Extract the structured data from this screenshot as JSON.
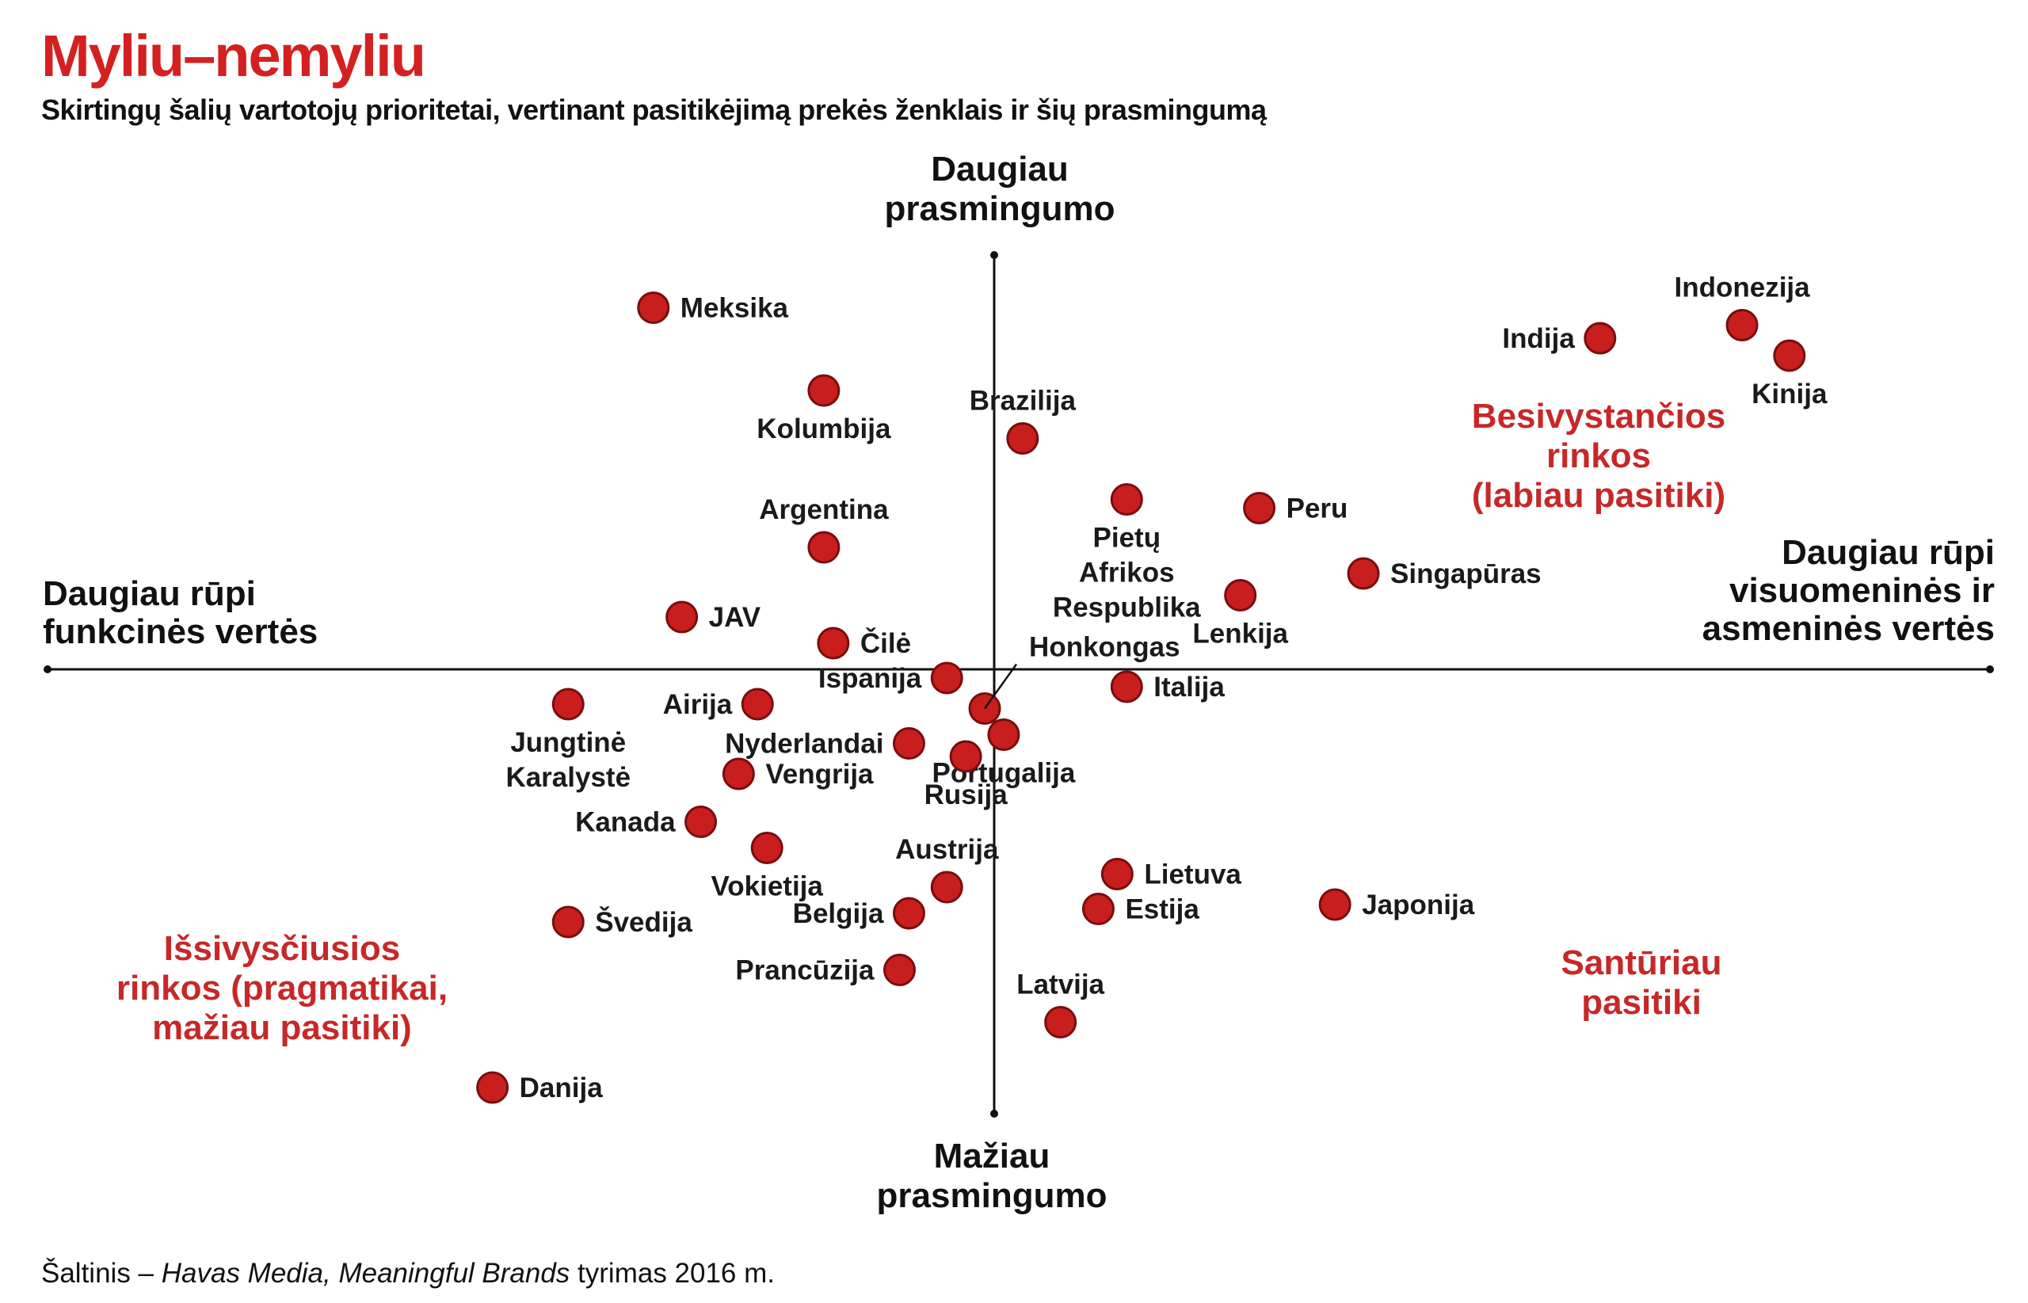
{
  "title": "Myliu–nemyliu",
  "subtitle": "Skirtingų šalių vartotojų prioritetai, vertinant pasitikėjimą prekės ženklais ir šių prasmingumą",
  "colors": {
    "title": "#d42020",
    "dot": "#c81e1e",
    "dot_stroke": "#7a0d0d",
    "quadrant_text": "#c62828",
    "axis": "#111111"
  },
  "source": {
    "prefix": "Šaltinis – ",
    "italic": "Havas Media, Meaningful Brands",
    "suffix": " tyrimas 2016 m."
  },
  "chart_data": {
    "type": "scatter",
    "title": "Myliu–nemyliu",
    "subtitle": "Skirtingų šalių vartotojų prioritetai, vertinant pasitikėjimą prekės ženklais ir šių prasmingumą",
    "xlim": [
      -100,
      100
    ],
    "ylim": [
      -100,
      100
    ],
    "grid": false,
    "axis_labels": {
      "top": [
        "Daugiau",
        "prasmingumo"
      ],
      "bottom": [
        "Mažiau",
        "prasmingumo"
      ],
      "left": [
        "Daugiau rūpi",
        "funkcinės vertės"
      ],
      "right": [
        "Daugiau rūpi",
        "visuomeninės ir",
        "asmeninės vertės"
      ]
    },
    "quadrants": [
      {
        "name": "top-right",
        "lines": [
          "Besivystančios",
          "rinkos",
          "(labiau pasitiki)"
        ]
      },
      {
        "name": "bottom-left",
        "lines": [
          "Išsivysčiusios",
          "rinkos (pragmatikai,",
          "mažiau pasitiki)"
        ]
      },
      {
        "name": "bottom-right",
        "lines": [
          "Santūriau",
          "pasitiki"
        ]
      }
    ],
    "points": [
      {
        "name": "Meksika",
        "label": [
          "Meksika"
        ],
        "x": -36,
        "y": 83,
        "pos": "right"
      },
      {
        "name": "Kolumbija",
        "label": [
          "Kolumbija"
        ],
        "x": -18,
        "y": 64,
        "pos": "below"
      },
      {
        "name": "Argentina",
        "label": [
          "Argentina"
        ],
        "x": -18,
        "y": 28,
        "pos": "above"
      },
      {
        "name": "JAV",
        "label": [
          "JAV"
        ],
        "x": -33,
        "y": 12,
        "pos": "right"
      },
      {
        "name": "Čilė",
        "label": [
          "Čilė"
        ],
        "x": -17,
        "y": 6,
        "pos": "right"
      },
      {
        "name": "Brazilija",
        "label": [
          "Brazilija"
        ],
        "x": 3,
        "y": 53,
        "pos": "above"
      },
      {
        "name": "Pietų Afrikos Respublika",
        "label": [
          "Pietų",
          "Afrikos",
          "Respublika"
        ],
        "x": 14,
        "y": 39,
        "pos": "below"
      },
      {
        "name": "Peru",
        "label": [
          "Peru"
        ],
        "x": 28,
        "y": 37,
        "pos": "right"
      },
      {
        "name": "Lenkija",
        "label": [
          "Lenkija"
        ],
        "x": 26,
        "y": 17,
        "pos": "below"
      },
      {
        "name": "Singapūras",
        "label": [
          "Singapūras"
        ],
        "x": 39,
        "y": 22,
        "pos": "right"
      },
      {
        "name": "Indija",
        "label": [
          "Indija"
        ],
        "x": 64,
        "y": 76,
        "pos": "left"
      },
      {
        "name": "Indonezija",
        "label": [
          "Indonezija"
        ],
        "x": 79,
        "y": 79,
        "pos": "above"
      },
      {
        "name": "Kinija",
        "label": [
          "Kinija"
        ],
        "x": 84,
        "y": 72,
        "pos": "below"
      },
      {
        "name": "Ispanija",
        "label": [
          "Ispanija"
        ],
        "x": -5,
        "y": -2,
        "pos": "left"
      },
      {
        "name": "Honkongas",
        "label": [
          "Honkongas"
        ],
        "x": -1,
        "y": -9,
        "pos": "leader"
      },
      {
        "name": "Portugalija",
        "label": [
          "Portugalija"
        ],
        "x": 1,
        "y": -15,
        "pos": "below"
      },
      {
        "name": "Italija",
        "label": [
          "Italija"
        ],
        "x": 14,
        "y": -4,
        "pos": "right"
      },
      {
        "name": "Airija",
        "label": [
          "Airija"
        ],
        "x": -25,
        "y": -8,
        "pos": "left"
      },
      {
        "name": "Jungtinė Karalystė",
        "label": [
          "Jungtinė",
          "Karalystė"
        ],
        "x": -45,
        "y": -8,
        "pos": "below"
      },
      {
        "name": "Nyderlandai",
        "label": [
          "Nyderlandai"
        ],
        "x": -9,
        "y": -17,
        "pos": "left"
      },
      {
        "name": "Rusija",
        "label": [
          "Rusija"
        ],
        "x": -3,
        "y": -20,
        "pos": "below"
      },
      {
        "name": "Vengrija",
        "label": [
          "Vengrija"
        ],
        "x": -27,
        "y": -24,
        "pos": "right"
      },
      {
        "name": "Kanada",
        "label": [
          "Kanada"
        ],
        "x": -31,
        "y": -35,
        "pos": "left"
      },
      {
        "name": "Vokietija",
        "label": [
          "Vokietija"
        ],
        "x": -24,
        "y": -41,
        "pos": "below"
      },
      {
        "name": "Austrija",
        "label": [
          "Austrija"
        ],
        "x": -5,
        "y": -50,
        "pos": "above"
      },
      {
        "name": "Belgija",
        "label": [
          "Belgija"
        ],
        "x": -9,
        "y": -56,
        "pos": "left"
      },
      {
        "name": "Švedija",
        "label": [
          "Švedija"
        ],
        "x": -45,
        "y": -58,
        "pos": "right"
      },
      {
        "name": "Prancūzija",
        "label": [
          "Prancūzija"
        ],
        "x": -10,
        "y": -69,
        "pos": "left"
      },
      {
        "name": "Lietuva",
        "label": [
          "Lietuva"
        ],
        "x": 13,
        "y": -47,
        "pos": "right"
      },
      {
        "name": "Estija",
        "label": [
          "Estija"
        ],
        "x": 11,
        "y": -55,
        "pos": "right"
      },
      {
        "name": "Japonija",
        "label": [
          "Japonija"
        ],
        "x": 36,
        "y": -54,
        "pos": "right"
      },
      {
        "name": "Latvija",
        "label": [
          "Latvija"
        ],
        "x": 7,
        "y": -81,
        "pos": "above"
      },
      {
        "name": "Danija",
        "label": [
          "Danija"
        ],
        "x": -53,
        "y": -96,
        "pos": "right"
      }
    ]
  }
}
